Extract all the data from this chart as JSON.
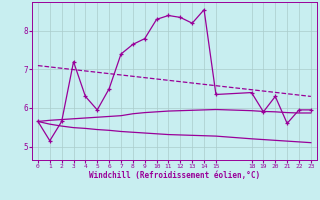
{
  "bg_color": "#c8eef0",
  "line_color": "#990099",
  "grid_color": "#aacccc",
  "xlabel": "Windchill (Refroidissement éolien,°C)",
  "xticks": [
    0,
    1,
    2,
    3,
    4,
    5,
    6,
    7,
    8,
    9,
    10,
    11,
    12,
    13,
    14,
    15,
    18,
    19,
    20,
    21,
    22,
    23
  ],
  "yticks": [
    5,
    6,
    7,
    8
  ],
  "ylim": [
    4.65,
    8.75
  ],
  "xlim": [
    -0.5,
    23.5
  ],
  "line1_x": [
    0,
    1,
    2,
    3,
    4,
    5,
    6,
    7,
    8,
    9,
    10,
    11,
    12,
    13,
    14,
    15,
    18,
    19,
    20,
    21,
    22,
    23
  ],
  "line1_y": [
    5.65,
    5.15,
    5.65,
    7.2,
    6.3,
    5.95,
    6.5,
    7.4,
    7.65,
    7.8,
    8.3,
    8.4,
    8.35,
    8.2,
    8.55,
    6.35,
    6.4,
    5.9,
    6.3,
    5.6,
    5.95,
    5.95
  ],
  "line2_x": [
    0,
    23
  ],
  "line2_y": [
    7.1,
    6.3
  ],
  "line3_x": [
    0,
    1,
    2,
    3,
    4,
    5,
    6,
    7,
    8,
    9,
    10,
    11,
    12,
    13,
    14,
    15,
    18,
    19,
    20,
    21,
    22,
    23
  ],
  "line3_y": [
    5.65,
    5.68,
    5.7,
    5.72,
    5.74,
    5.76,
    5.78,
    5.8,
    5.85,
    5.88,
    5.9,
    5.92,
    5.93,
    5.94,
    5.95,
    5.96,
    5.93,
    5.91,
    5.9,
    5.88,
    5.87,
    5.87
  ],
  "line4_x": [
    0,
    1,
    2,
    3,
    4,
    5,
    6,
    7,
    8,
    9,
    10,
    11,
    12,
    13,
    14,
    15,
    18,
    19,
    20,
    21,
    22,
    23
  ],
  "line4_y": [
    5.65,
    5.58,
    5.53,
    5.49,
    5.47,
    5.44,
    5.42,
    5.39,
    5.37,
    5.35,
    5.33,
    5.31,
    5.3,
    5.29,
    5.28,
    5.27,
    5.2,
    5.18,
    5.16,
    5.14,
    5.12,
    5.1
  ]
}
